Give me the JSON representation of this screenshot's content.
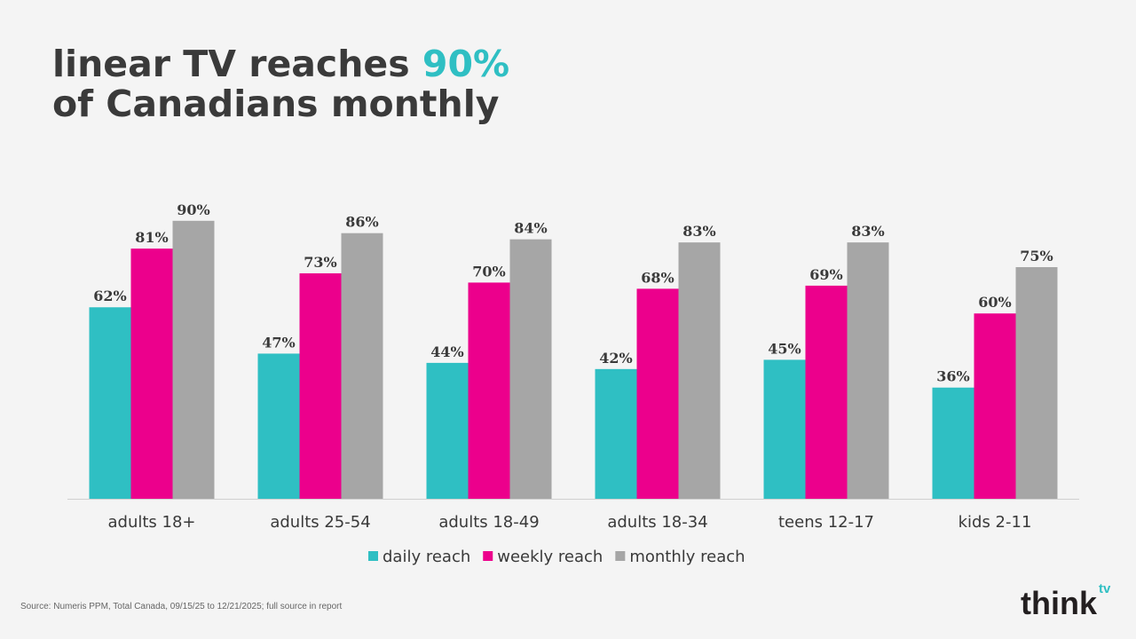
{
  "title": {
    "line1_prefix": "linear TV reaches ",
    "line1_accent": "90%",
    "line2": "of Canadians monthly"
  },
  "source": "Source: Numeris PPM, Total Canada, 09/15/25 to 12/21/2025; full source in report",
  "logo": {
    "text": "think",
    "superscript": "tv"
  },
  "chart_data": {
    "type": "bar",
    "categories": [
      "adults 18+",
      "adults 25-54",
      "adults 18-49",
      "adults 18-34",
      "teens 12-17",
      "kids 2-11"
    ],
    "series": [
      {
        "name": "daily reach",
        "color": "#2fbfc3",
        "values": [
          62,
          47,
          44,
          42,
          45,
          36
        ]
      },
      {
        "name": "weekly reach",
        "color": "#ec008c",
        "values": [
          81,
          73,
          70,
          68,
          69,
          60
        ]
      },
      {
        "name": "monthly reach",
        "color": "#a6a6a6",
        "values": [
          90,
          86,
          84,
          83,
          83,
          75
        ]
      }
    ],
    "value_suffix": "%",
    "ylim": [
      0,
      100
    ],
    "grid": false,
    "legend": "bottom"
  }
}
